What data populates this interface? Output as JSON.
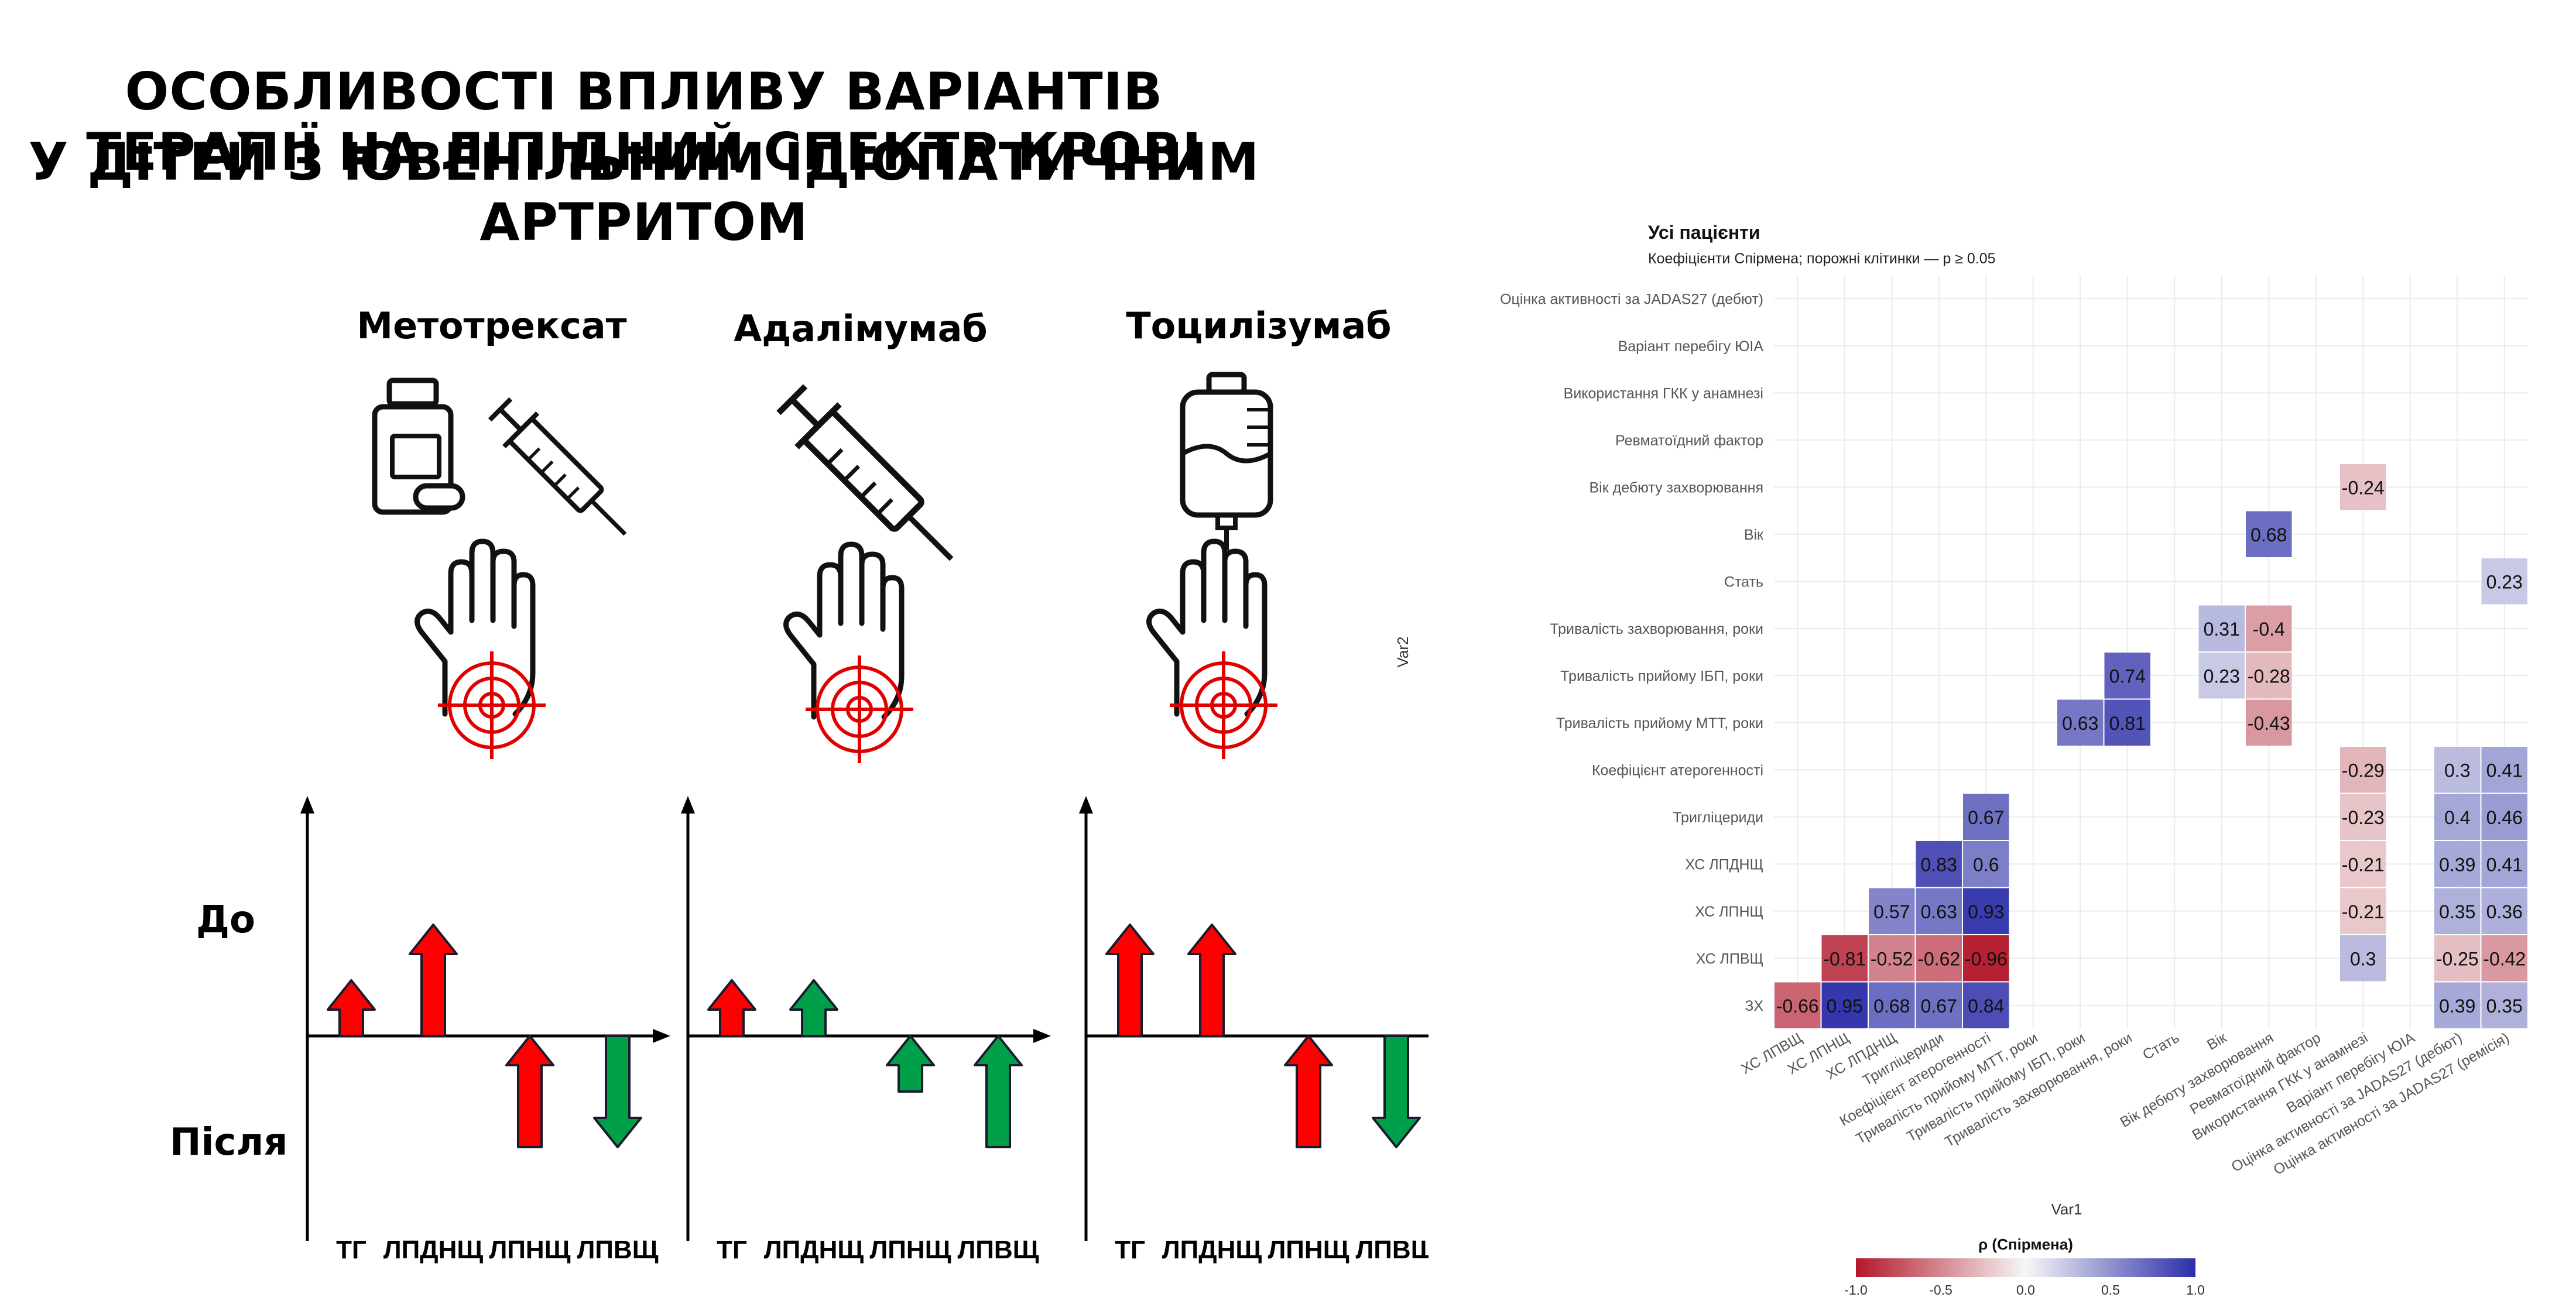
{
  "title": {
    "line1": "ОСОБЛИВОСТІ ВПЛИВУ ВАРІАНТІВ ТЕРАПІЇ НА ЛІПІДНИЙ СПЕКТР КРОВІ",
    "line2": "У ДІТЕЙ З ЮВЕНІЛЬНИМ ІДІОПАТИЧНИМ АРТРИТОМ"
  },
  "row_labels": {
    "before": "До",
    "after": "Після"
  },
  "drugs": [
    {
      "name": "Метотрексат",
      "icons": [
        "pill-bottle-icon",
        "syringe-icon"
      ]
    },
    {
      "name": "Адалімумаб",
      "icons": [
        "syringe-icon"
      ]
    },
    {
      "name": "Тоцилізумаб",
      "icons": [
        "iv-bag-icon"
      ]
    }
  ],
  "colors": {
    "red": "#ff0000",
    "green": "#00a04b",
    "low": "#b2182b",
    "mid": "#f7f7f7",
    "high": "#2b2ea8"
  },
  "chart_data": [
    {
      "type": "bar",
      "panel": "Метотрексат",
      "categories": [
        "ТГ",
        "ЛПДНЩ",
        "ЛПНЩ",
        "ЛПВЩ"
      ],
      "series": [
        {
          "name": "До",
          "values": [
            1,
            2,
            0,
            0
          ]
        },
        {
          "name": "Після",
          "values": [
            0,
            0,
            -2,
            -2
          ]
        }
      ],
      "arrows": [
        {
          "category": "ТГ",
          "direction": "up",
          "color": "red",
          "value": 1
        },
        {
          "category": "ЛПДНЩ",
          "direction": "up",
          "color": "red",
          "value": 2
        },
        {
          "category": "ЛПНЩ",
          "direction": "up",
          "color": "red",
          "value": -2
        },
        {
          "category": "ЛПВЩ",
          "direction": "down",
          "color": "green",
          "value": -2
        }
      ]
    },
    {
      "type": "bar",
      "panel": "Адалімумаб",
      "categories": [
        "ТГ",
        "ЛПДНЩ",
        "ЛПНЩ",
        "ЛПВЩ"
      ],
      "series": [
        {
          "name": "До",
          "values": [
            1,
            1,
            0,
            0
          ]
        },
        {
          "name": "Після",
          "values": [
            0,
            0,
            -1,
            -2
          ]
        }
      ],
      "arrows": [
        {
          "category": "ТГ",
          "direction": "up",
          "color": "red",
          "value": 1
        },
        {
          "category": "ЛПДНЩ",
          "direction": "up",
          "color": "green",
          "value": 1
        },
        {
          "category": "ЛПНЩ",
          "direction": "up",
          "color": "green",
          "value": -1
        },
        {
          "category": "ЛПВЩ",
          "direction": "up",
          "color": "green",
          "value": -2
        }
      ]
    },
    {
      "type": "bar",
      "panel": "Тоцилізумаб",
      "categories": [
        "ТГ",
        "ЛПДНЩ",
        "ЛПНЩ",
        "ЛПВЩ"
      ],
      "series": [
        {
          "name": "До",
          "values": [
            2,
            2,
            0,
            0
          ]
        },
        {
          "name": "Після",
          "values": [
            0,
            0,
            -2,
            -2
          ]
        }
      ],
      "arrows": [
        {
          "category": "ТГ",
          "direction": "up",
          "color": "red",
          "value": 2
        },
        {
          "category": "ЛПДНЩ",
          "direction": "up",
          "color": "red",
          "value": 2
        },
        {
          "category": "ЛПНЩ",
          "direction": "up",
          "color": "red",
          "value": -2
        },
        {
          "category": "ЛПВЩ",
          "direction": "down",
          "color": "green",
          "value": -2
        }
      ]
    },
    {
      "type": "heatmap",
      "title": "Усі пацієнти",
      "subtitle": "Коефіцієнти Спірмена; порожні клітинки — p ≥ 0.05",
      "xlabel": "Var1",
      "ylabel": "Var2",
      "x_categories": [
        "ХС ЛПВЩ",
        "ХС ЛПНЩ",
        "ХС ЛПДНЩ",
        "Тригліцериди",
        "Коефіцієнт атерогенності",
        "Тривалість прийому МТТ, роки",
        "Тривалість прийому ІБП, роки",
        "Тривалість захворювання, роки",
        "Стать",
        "Вік",
        "Вік дебюту захворювання",
        "Ревматоїдний фактор",
        "Використання ГКК у анамнезі",
        "Варіант перебігу ЮІА",
        "Оцінка активності за JADAS27 (дебют)",
        "Оцінка активності за JADAS27 (ремісія)"
      ],
      "y_categories": [
        "Оцінка активності за JADAS27 (дебют)",
        "Варіант перебігу ЮІА",
        "Використання ГКК у анамнезі",
        "Ревматоїдний фактор",
        "Вік дебюту захворювання",
        "Вік",
        "Стать",
        "Тривалість захворювання, роки",
        "Тривалість прийому ІБП, роки",
        "Тривалість прийому МТТ, роки",
        "Коефіцієнт атерогенності",
        "Тригліцериди",
        "ХС ЛПДНЩ",
        "ХС ЛПНЩ",
        "ХС ЛПВЩ",
        "ЗХ"
      ],
      "cells": [
        {
          "x": "Вік дебюту захворювання",
          "y": "Вік",
          "value": 0.68
        },
        {
          "x": "Використання ГКК у анамнезі",
          "y": "Вік дебюту захворювання",
          "value": -0.24
        },
        {
          "x": "Оцінка активності за JADAS27 (ремісія)",
          "y": "Стать",
          "value": 0.23
        },
        {
          "x": "Вік",
          "y": "Тривалість захворювання, роки",
          "value": 0.31
        },
        {
          "x": "Вік дебюту захворювання",
          "y": "Тривалість захворювання, роки",
          "value": -0.4
        },
        {
          "x": "Тривалість захворювання, роки",
          "y": "Тривалість прийому ІБП, роки",
          "value": 0.74
        },
        {
          "x": "Вік",
          "y": "Тривалість прийому ІБП, роки",
          "value": 0.23
        },
        {
          "x": "Вік дебюту захворювання",
          "y": "Тривалість прийому ІБП, роки",
          "value": -0.28
        },
        {
          "x": "Тривалість прийому ІБП, роки",
          "y": "Тривалість прийому МТТ, роки",
          "value": 0.63
        },
        {
          "x": "Тривалість захворювання, роки",
          "y": "Тривалість прийому МТТ, роки",
          "value": 0.81
        },
        {
          "x": "Вік дебюту захворювання",
          "y": "Тривалість прийому МТТ, роки",
          "value": -0.43
        },
        {
          "x": "Використання ГКК у анамнезі",
          "y": "Коефіцієнт атерогенності",
          "value": -0.29
        },
        {
          "x": "Оцінка активності за JADAS27 (дебют)",
          "y": "Коефіцієнт атерогенності",
          "value": 0.3
        },
        {
          "x": "Оцінка активності за JADAS27 (ремісія)",
          "y": "Коефіцієнт атерогенності",
          "value": 0.41
        },
        {
          "x": "Коефіцієнт атерогенності",
          "y": "Тригліцериди",
          "value": 0.67
        },
        {
          "x": "Використання ГКК у анамнезі",
          "y": "Тригліцериди",
          "value": -0.23
        },
        {
          "x": "Оцінка активності за JADAS27 (дебют)",
          "y": "Тригліцериди",
          "value": 0.4
        },
        {
          "x": "Оцінка активності за JADAS27 (ремісія)",
          "y": "Тригліцериди",
          "value": 0.46
        },
        {
          "x": "Тригліцериди",
          "y": "ХС ЛПДНЩ",
          "value": 0.83
        },
        {
          "x": "Коефіцієнт атерогенності",
          "y": "ХС ЛПДНЩ",
          "value": 0.6
        },
        {
          "x": "Використання ГКК у анамнезі",
          "y": "ХС ЛПДНЩ",
          "value": -0.21
        },
        {
          "x": "Оцінка активності за JADAS27 (дебют)",
          "y": "ХС ЛПДНЩ",
          "value": 0.39
        },
        {
          "x": "Оцінка активності за JADAS27 (ремісія)",
          "y": "ХС ЛПДНЩ",
          "value": 0.41
        },
        {
          "x": "ХС ЛПДНЩ",
          "y": "ХС ЛПНЩ",
          "value": 0.57
        },
        {
          "x": "Тригліцериди",
          "y": "ХС ЛПНЩ",
          "value": 0.63
        },
        {
          "x": "Коефіцієнт атерогенності",
          "y": "ХС ЛПНЩ",
          "value": 0.93
        },
        {
          "x": "Використання ГКК у анамнезі",
          "y": "ХС ЛПНЩ",
          "value": -0.21
        },
        {
          "x": "Оцінка активності за JADAS27 (дебют)",
          "y": "ХС ЛПНЩ",
          "value": 0.35
        },
        {
          "x": "Оцінка активності за JADAS27 (ремісія)",
          "y": "ХС ЛПНЩ",
          "value": 0.36
        },
        {
          "x": "ХС ЛПНЩ",
          "y": "ХС ЛПВЩ",
          "value": -0.81
        },
        {
          "x": "ХС ЛПДНЩ",
          "y": "ХС ЛПВЩ",
          "value": -0.52
        },
        {
          "x": "Тригліцериди",
          "y": "ХС ЛПВЩ",
          "value": -0.62
        },
        {
          "x": "Коефіцієнт атерогенності",
          "y": "ХС ЛПВЩ",
          "value": -0.96
        },
        {
          "x": "Використання ГКК у анамнезі",
          "y": "ХС ЛПВЩ",
          "value": 0.3
        },
        {
          "x": "Оцінка активності за JADAS27 (дебют)",
          "y": "ХС ЛПВЩ",
          "value": -0.25
        },
        {
          "x": "Оцінка активності за JADAS27 (ремісія)",
          "y": "ХС ЛПВЩ",
          "value": -0.42
        },
        {
          "x": "ХС ЛПВЩ",
          "y": "ЗХ",
          "value": -0.66
        },
        {
          "x": "ХС ЛПНЩ",
          "y": "ЗХ",
          "value": 0.95
        },
        {
          "x": "ХС ЛПДНЩ",
          "y": "ЗХ",
          "value": 0.68
        },
        {
          "x": "Тригліцериди",
          "y": "ЗХ",
          "value": 0.67
        },
        {
          "x": "Коефіцієнт атерогенності",
          "y": "ЗХ",
          "value": 0.84
        },
        {
          "x": "Оцінка активності за JADAS27 (дебют)",
          "y": "ЗХ",
          "value": 0.39
        },
        {
          "x": "Оцінка активності за JADAS27 (ремісія)",
          "y": "ЗХ",
          "value": 0.35
        }
      ],
      "legend": {
        "title": "ρ (Спірмена)",
        "ticks": [
          "-1.0",
          "-0.5",
          "0.0",
          "0.5",
          "1.0"
        ],
        "range": [
          -1,
          1
        ],
        "placement": "bottom"
      }
    }
  ]
}
